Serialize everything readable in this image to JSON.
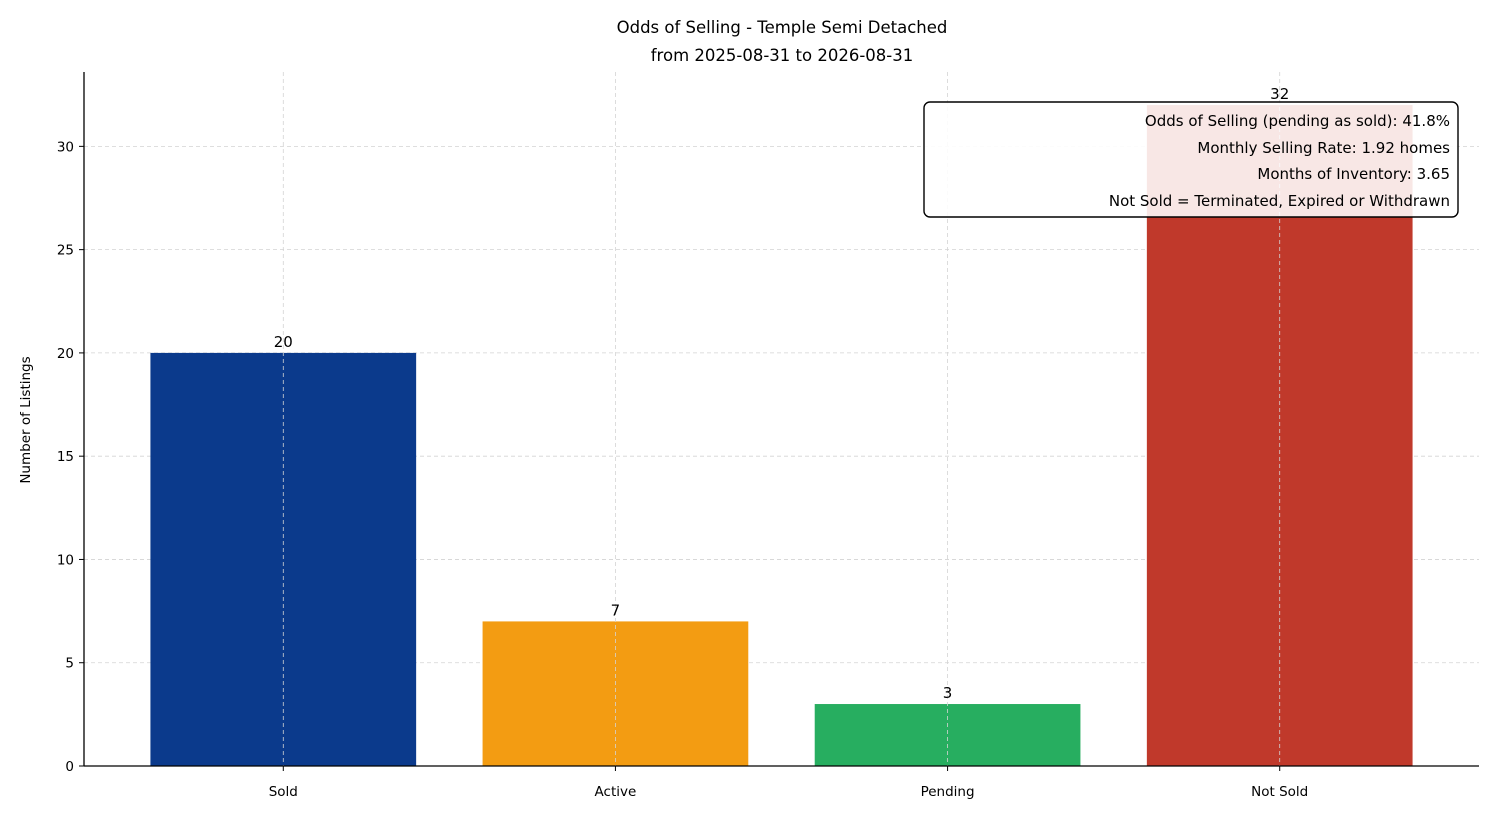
{
  "chart_data": {
    "type": "bar",
    "title": "Odds of Selling - Temple Semi Detached",
    "subtitle": "from 2025-08-31 to 2026-08-31",
    "xlabel": "",
    "ylabel": "Number of Listings",
    "categories": [
      "Sold",
      "Active",
      "Pending",
      "Not Sold"
    ],
    "values": [
      20,
      7,
      3,
      32
    ],
    "colors": [
      "#0b3a8c",
      "#f39c12",
      "#27ae60",
      "#c0392b"
    ],
    "ylim": [
      0,
      33.6
    ],
    "yticks": [
      0,
      5,
      10,
      15,
      20,
      25,
      30
    ],
    "grid": true,
    "annotation": {
      "lines": [
        "Odds of Selling (pending as sold): 41.8%",
        "Monthly Selling Rate: 1.92 homes",
        "Months of Inventory: 3.65",
        "Not Sold = Terminated, Expired or Withdrawn"
      ],
      "placement": "top-right"
    }
  }
}
